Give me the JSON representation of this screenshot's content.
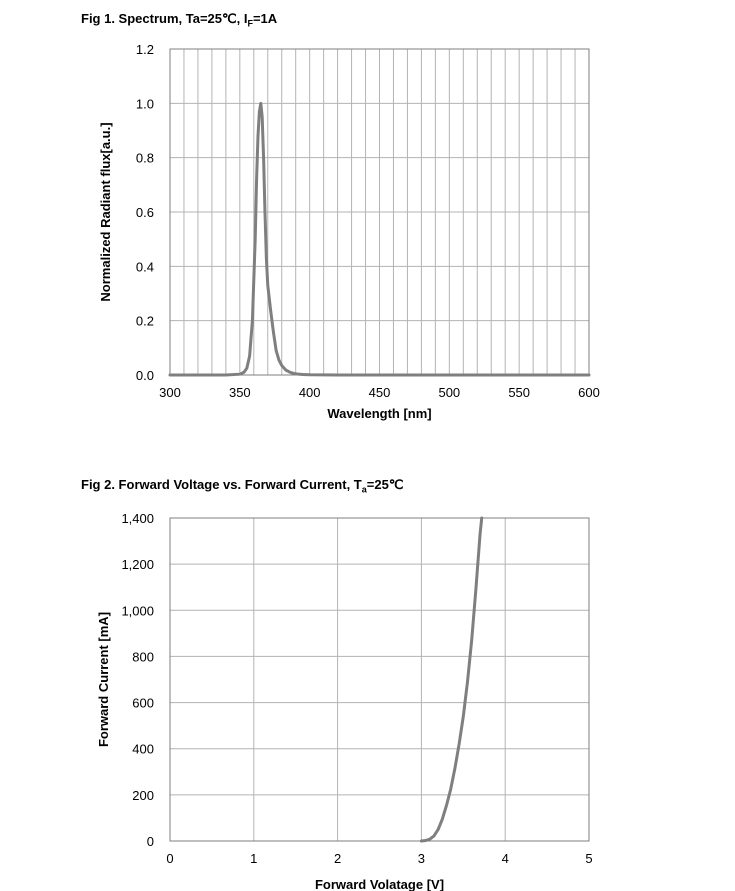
{
  "figures": {
    "fig1": {
      "prefix": "Fig 1. Spectrum, Ta=25℃, I",
      "sub": "F",
      "suffix": "=1A"
    },
    "fig2": {
      "prefix": "Fig 2. Forward Voltage vs. Forward Current, T",
      "sub": "a",
      "suffix": "=25℃"
    }
  },
  "colors": {
    "curve": "#7f7f7f",
    "grid": "#b3b3b3",
    "frame": "#7f7f7f"
  },
  "chart_data": [
    {
      "type": "line",
      "title": "Fig 1. Spectrum, Ta=25℃, IF=1A",
      "xlabel": "Wavelength [nm]",
      "ylabel": "Normalized Radiant flux[a.u.]",
      "xlim": [
        300,
        600
      ],
      "ylim": [
        0,
        1.2
      ],
      "xticks": [
        "300",
        "350",
        "400",
        "450",
        "500",
        "550",
        "600"
      ],
      "yticks": [
        "0.0",
        "0.2",
        "0.4",
        "0.6",
        "0.8",
        "1.0",
        "1.2"
      ],
      "xtick_values": [
        300,
        350,
        400,
        450,
        500,
        550,
        600
      ],
      "ytick_values": [
        0,
        0.2,
        0.4,
        0.6,
        0.8,
        1.0,
        1.2
      ],
      "x_minor_step": 10,
      "grid": true,
      "series": [
        {
          "x": [
            300,
            340,
            350,
            353,
            355,
            357,
            359,
            361,
            362,
            363,
            364,
            365,
            366,
            367,
            368,
            369,
            370,
            372,
            374,
            376,
            378,
            380,
            383,
            386,
            390,
            395,
            400,
            420,
            600
          ],
          "y": [
            0,
            0.0,
            0.003,
            0.01,
            0.025,
            0.07,
            0.2,
            0.5,
            0.72,
            0.88,
            0.97,
            1.0,
            0.95,
            0.8,
            0.6,
            0.43,
            0.33,
            0.24,
            0.16,
            0.09,
            0.055,
            0.035,
            0.018,
            0.01,
            0.004,
            0.002,
            0.001,
            0,
            0
          ]
        }
      ]
    },
    {
      "type": "line",
      "title": "Fig 2. Forward Voltage vs. Forward Current, Ta=25℃",
      "xlabel": "Forward  Volatage [V]",
      "ylabel": "Forward Current [mA]",
      "xlim": [
        0,
        5
      ],
      "ylim": [
        0,
        1400
      ],
      "xticks": [
        "0",
        "1",
        "2",
        "3",
        "4",
        "5"
      ],
      "yticks": [
        "0",
        "200",
        "400",
        "600",
        "800",
        "1,000",
        "1,200",
        "1,400"
      ],
      "xtick_values": [
        0,
        1,
        2,
        3,
        4,
        5
      ],
      "ytick_values": [
        0,
        200,
        400,
        600,
        800,
        1000,
        1200,
        1400
      ],
      "grid": true,
      "series": [
        {
          "x": [
            3.0,
            3.05,
            3.1,
            3.15,
            3.2,
            3.25,
            3.3,
            3.35,
            3.4,
            3.45,
            3.5,
            3.55,
            3.6,
            3.65,
            3.7,
            3.72
          ],
          "y": [
            0,
            2,
            8,
            22,
            50,
            95,
            155,
            225,
            315,
            420,
            540,
            690,
            870,
            1090,
            1330,
            1400
          ]
        }
      ]
    }
  ]
}
